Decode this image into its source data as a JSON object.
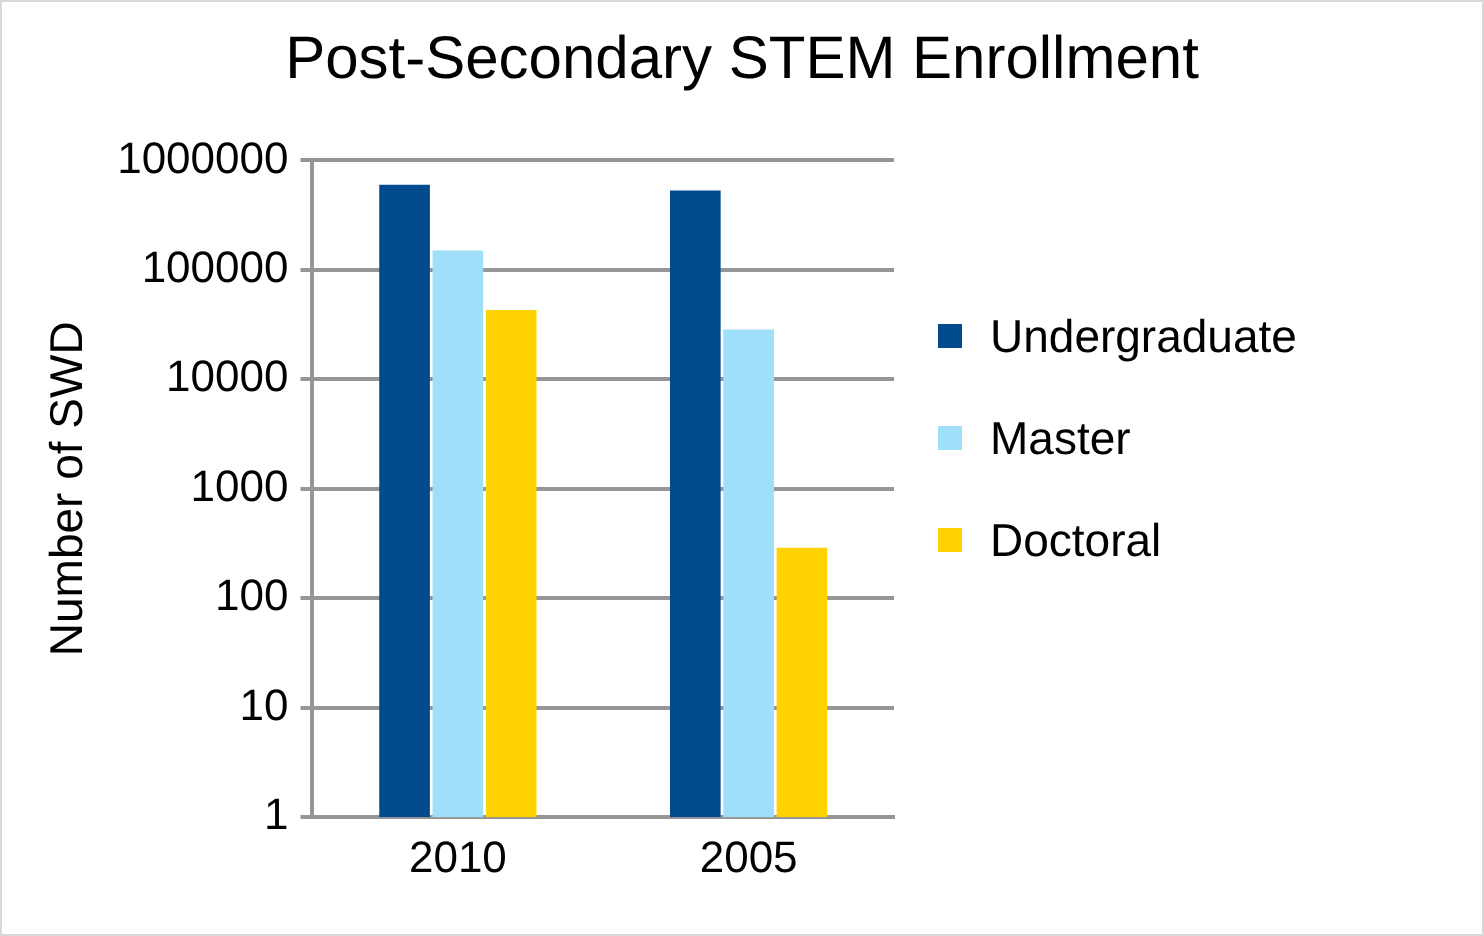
{
  "chart_data": {
    "type": "bar",
    "title": "Post-Secondary STEM Enrollment",
    "ylabel": "Number of SWD",
    "categories": [
      "2010",
      "2005"
    ],
    "series": [
      {
        "name": "Undergraduate",
        "color": "#004a8d",
        "values": [
          600000,
          530000
        ]
      },
      {
        "name": "Master",
        "color": "#a0dff9",
        "values": [
          150000,
          28500
        ]
      },
      {
        "name": "Doctoral",
        "color": "#ffd200",
        "values": [
          43000,
          290
        ]
      }
    ],
    "log": true,
    "ylim": [
      1,
      1000000
    ],
    "yticks": [
      1,
      10,
      100,
      1000,
      10000,
      100000,
      1000000
    ],
    "grid": "y",
    "legend": "right"
  }
}
